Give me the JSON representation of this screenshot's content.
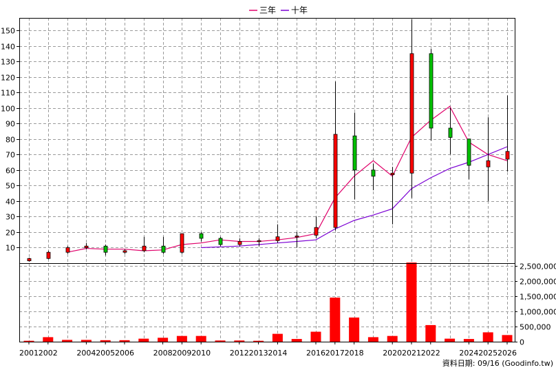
{
  "legend": [
    {
      "name": "三年",
      "color": "#e0006a"
    },
    {
      "name": "十年",
      "color": "#7b00d4"
    }
  ],
  "source_note": "資料日期: 09/16  (Goodinfo.tw)",
  "chart_data": [
    {
      "type": "candlestick",
      "title": "",
      "xlabel": "",
      "ylabel": "",
      "ylim": [
        0,
        158
      ],
      "yticks": [
        10,
        20,
        30,
        40,
        50,
        60,
        70,
        80,
        90,
        100,
        110,
        120,
        130,
        140,
        150
      ],
      "x_tick_labels": [
        "2001",
        "2002",
        "2004",
        "2005",
        "2006",
        "2008",
        "2009",
        "2010",
        "2012",
        "2013",
        "2014",
        "2016",
        "2017",
        "2018",
        "2020",
        "2021",
        "2022",
        "2024",
        "2025",
        "2026"
      ],
      "up_color": "#ff0000",
      "down_color": "#00c000",
      "grid": true,
      "legend_position": "top-center",
      "candles": [
        {
          "year": 2001,
          "open": 1.5,
          "close": 3.0,
          "high": 3.5,
          "low": 1.0
        },
        {
          "year": 2002,
          "open": 3.0,
          "close": 7.0,
          "high": 8.0,
          "low": 2.5
        },
        {
          "year": 2003,
          "open": 7.0,
          "close": 10.0,
          "high": 11.0,
          "low": 6.0
        },
        {
          "year": 2004,
          "open": 10.0,
          "close": 11.0,
          "high": 13.0,
          "low": 9.0
        },
        {
          "year": 2005,
          "open": 11.0,
          "close": 7.0,
          "high": 12.0,
          "low": 5.0
        },
        {
          "year": 2006,
          "open": 7.0,
          "close": 8.0,
          "high": 9.0,
          "low": 6.0
        },
        {
          "year": 2007,
          "open": 8.0,
          "close": 11.0,
          "high": 17.0,
          "low": 7.0
        },
        {
          "year": 2008,
          "open": 11.0,
          "close": 7.0,
          "high": 17.0,
          "low": 6.0
        },
        {
          "year": 2009,
          "open": 7.0,
          "close": 19.0,
          "high": 19.0,
          "low": 6.0
        },
        {
          "year": 2010,
          "open": 19.0,
          "close": 16.0,
          "high": 20.0,
          "low": 14.0
        },
        {
          "year": 2011,
          "open": 16.0,
          "close": 12.0,
          "high": 17.0,
          "low": 11.0
        },
        {
          "year": 2012,
          "open": 12.0,
          "close": 14.0,
          "high": 16.0,
          "low": 11.0
        },
        {
          "year": 2013,
          "open": 14.0,
          "close": 14.5,
          "high": 16.0,
          "low": 11.0
        },
        {
          "year": 2014,
          "open": 14.5,
          "close": 17.0,
          "high": 25.0,
          "low": 13.0
        },
        {
          "year": 2015,
          "open": 17.0,
          "close": 17.5,
          "high": 20.0,
          "low": 10.0
        },
        {
          "year": 2016,
          "open": 18.0,
          "close": 23.0,
          "high": 30.0,
          "low": 16.0
        },
        {
          "year": 2017,
          "open": 23.0,
          "close": 83.0,
          "high": 117.0,
          "low": 21.0
        },
        {
          "year": 2018,
          "open": 82.0,
          "close": 60.0,
          "high": 97.0,
          "low": 41.0
        },
        {
          "year": 2019,
          "open": 60.0,
          "close": 56.0,
          "high": 64.0,
          "low": 47.0
        },
        {
          "year": 2020,
          "open": 57.0,
          "close": 58.0,
          "high": 62.0,
          "low": 25.0
        },
        {
          "year": 2021,
          "open": 58.0,
          "close": 135.0,
          "high": 157.0,
          "low": 42.0
        },
        {
          "year": 2022,
          "open": 135.0,
          "close": 87.0,
          "high": 138.0,
          "low": 79.0
        },
        {
          "year": 2023,
          "open": 87.0,
          "close": 81.0,
          "high": 100.0,
          "low": 70.0
        },
        {
          "year": 2024,
          "open": 80.0,
          "close": 63.0,
          "high": 80.0,
          "low": 54.0
        },
        {
          "year": 2025,
          "open": 62.0,
          "close": 66.0,
          "high": 94.0,
          "low": 40.0
        },
        {
          "year": 2026,
          "open": 67.0,
          "close": 72.0,
          "high": 108.0,
          "low": 59.0
        }
      ],
      "series": [
        {
          "name": "三年",
          "color": "#e0006a",
          "x": [
            2003,
            2004,
            2005,
            2006,
            2007,
            2008,
            2009,
            2010,
            2011,
            2012,
            2013,
            2014,
            2015,
            2016,
            2017,
            2018,
            2019,
            2020,
            2021,
            2022,
            2023,
            2024,
            2025,
            2026
          ],
          "values": [
            7,
            9.5,
            9,
            9,
            8,
            8.5,
            12,
            13,
            15,
            14,
            14,
            15,
            16.5,
            19,
            42,
            56,
            66,
            56,
            81,
            92,
            101,
            78,
            70,
            66
          ]
        },
        {
          "name": "十年",
          "color": "#7b00d4",
          "x": [
            2010,
            2011,
            2012,
            2013,
            2014,
            2015,
            2016,
            2017,
            2018,
            2019,
            2020,
            2021,
            2022,
            2023,
            2024,
            2025,
            2026
          ],
          "values": [
            10,
            10.5,
            11,
            12,
            13,
            14,
            15,
            22,
            27.5,
            31,
            35,
            48,
            55,
            61,
            65,
            70,
            75
          ]
        }
      ]
    },
    {
      "type": "bar",
      "title": "",
      "xlabel": "",
      "ylabel": "",
      "ylim": [
        0,
        2600000
      ],
      "yticks": [
        0,
        500000,
        1000000,
        1500000,
        2000000,
        2500000
      ],
      "ytick_labels": [
        "0",
        "500,000",
        "1,000,000",
        "1,500,000",
        "2,000,000",
        "2,500,000"
      ],
      "color": "#ff0000",
      "x": [
        2001,
        2002,
        2003,
        2004,
        2005,
        2006,
        2007,
        2008,
        2009,
        2010,
        2011,
        2012,
        2013,
        2014,
        2015,
        2016,
        2017,
        2018,
        2019,
        2020,
        2021,
        2022,
        2023,
        2024,
        2025,
        2026
      ],
      "values": [
        30000,
        150000,
        60000,
        60000,
        50000,
        50000,
        100000,
        130000,
        190000,
        190000,
        40000,
        40000,
        30000,
        260000,
        90000,
        330000,
        1460000,
        800000,
        150000,
        190000,
        2620000,
        550000,
        100000,
        90000,
        310000,
        220000
      ]
    }
  ]
}
